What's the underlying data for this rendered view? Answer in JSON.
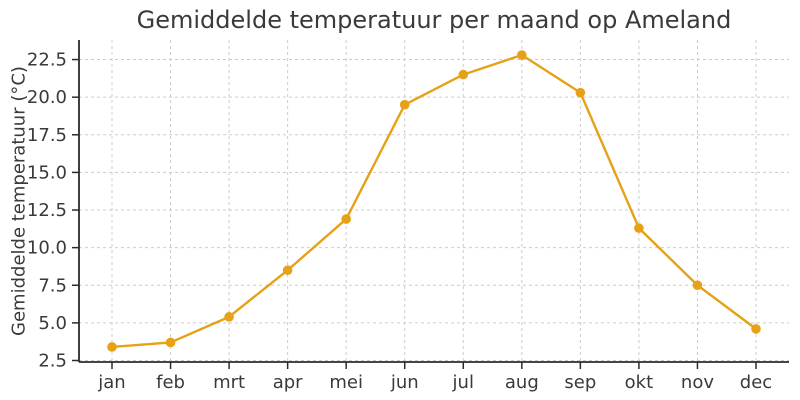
{
  "chart_data": {
    "type": "line",
    "title": "Gemiddelde temperatuur per maand op Ameland",
    "xlabel": "",
    "ylabel": "Gemiddelde temperatuur (°C)",
    "categories": [
      "jan",
      "feb",
      "mrt",
      "apr",
      "mei",
      "jun",
      "jul",
      "aug",
      "sep",
      "okt",
      "nov",
      "dec"
    ],
    "values": [
      3.4,
      3.7,
      5.4,
      8.5,
      11.9,
      19.5,
      21.5,
      22.8,
      20.3,
      11.3,
      7.5,
      4.6
    ],
    "ytick_labels": [
      "2.5",
      "5.0",
      "7.5",
      "10.0",
      "12.5",
      "15.0",
      "17.5",
      "20.0",
      "22.5"
    ],
    "ylim": [
      2.4,
      23.8
    ],
    "grid": true,
    "legend": null,
    "series_name": "Gemiddelde temperatuur",
    "colors": {
      "line": "#E6A117",
      "marker": "#E6A117",
      "grid": "#cccccc",
      "spine": "#2b2b2b",
      "text": "#3a3a3a",
      "background": "#ffffff"
    }
  }
}
